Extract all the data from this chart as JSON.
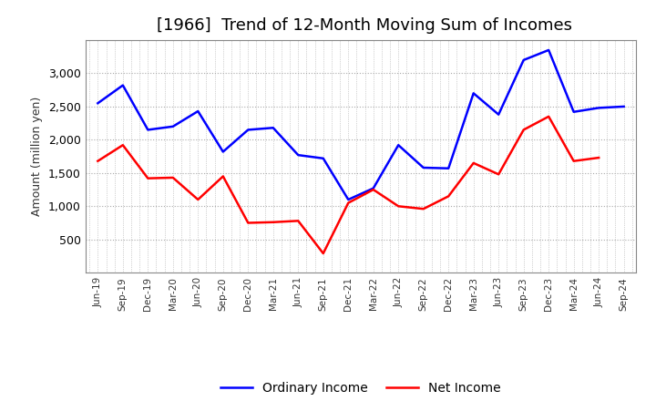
{
  "title": "[1966]  Trend of 12-Month Moving Sum of Incomes",
  "ylabel": "Amount (million yen)",
  "x_labels": [
    "Jun-19",
    "Sep-19",
    "Dec-19",
    "Mar-20",
    "Jun-20",
    "Sep-20",
    "Dec-20",
    "Mar-21",
    "Jun-21",
    "Sep-21",
    "Dec-21",
    "Mar-22",
    "Jun-22",
    "Sep-22",
    "Dec-22",
    "Mar-23",
    "Jun-23",
    "Sep-23",
    "Dec-23",
    "Mar-24",
    "Jun-24",
    "Sep-24"
  ],
  "ordinary_income": [
    2550,
    2820,
    2150,
    2200,
    2430,
    1820,
    2150,
    2180,
    1770,
    1720,
    1100,
    1270,
    1920,
    1580,
    1570,
    2700,
    2380,
    3200,
    3350,
    2420,
    2480,
    2500
  ],
  "net_income": [
    1680,
    1920,
    1420,
    1430,
    1100,
    1450,
    750,
    760,
    780,
    290,
    1050,
    1250,
    1000,
    960,
    1150,
    1650,
    1480,
    2150,
    2350,
    1680,
    1730,
    null
  ],
  "ordinary_color": "#0000FF",
  "net_color": "#FF0000",
  "ylim_min": 0,
  "ylim_max": 3500,
  "yticks": [
    500,
    1000,
    1500,
    2000,
    2500,
    3000
  ],
  "background_color": "#FFFFFF",
  "grid_color": "#AAAAAA",
  "title_fontsize": 13,
  "legend_labels": [
    "Ordinary Income",
    "Net Income"
  ]
}
